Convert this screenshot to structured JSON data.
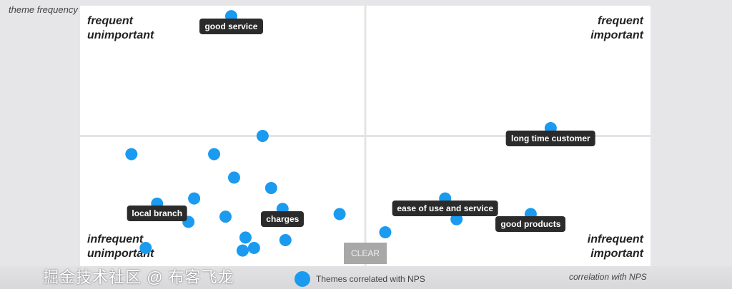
{
  "chart_data": {
    "type": "scatter",
    "ylabel": "theme frequency",
    "xlabel": "correlation with NPS",
    "xlim": [
      -1,
      1
    ],
    "ylim": [
      0,
      1
    ],
    "quadrants": {
      "top_left": [
        "frequent",
        "unimportant"
      ],
      "top_right": [
        "frequent",
        "important"
      ],
      "bottom_left": [
        "infrequent",
        "unimportant"
      ],
      "bottom_right": [
        "infrequent",
        "important"
      ]
    },
    "legend": "Themes correlated with NPS",
    "color": "#1a9bf0",
    "points": [
      {
        "x": -0.47,
        "y": 0.96,
        "label": "good service"
      },
      {
        "x": -0.36,
        "y": 0.5
      },
      {
        "x": 0.65,
        "y": 0.53,
        "label": "long time customer"
      },
      {
        "x": -0.82,
        "y": 0.43
      },
      {
        "x": -0.53,
        "y": 0.43
      },
      {
        "x": -0.46,
        "y": 0.34
      },
      {
        "x": -0.33,
        "y": 0.3
      },
      {
        "x": -0.6,
        "y": 0.26
      },
      {
        "x": -0.73,
        "y": 0.24,
        "label": "local branch"
      },
      {
        "x": -0.29,
        "y": 0.22,
        "label": "charges"
      },
      {
        "x": -0.49,
        "y": 0.19
      },
      {
        "x": -0.62,
        "y": 0.17
      },
      {
        "x": -0.09,
        "y": 0.2
      },
      {
        "x": -0.42,
        "y": 0.11
      },
      {
        "x": -0.28,
        "y": 0.1
      },
      {
        "x": -0.43,
        "y": 0.06
      },
      {
        "x": -0.39,
        "y": 0.07
      },
      {
        "x": -0.77,
        "y": 0.07
      },
      {
        "x": 0.07,
        "y": 0.13
      },
      {
        "x": 0.28,
        "y": 0.26,
        "label": "ease of use and service"
      },
      {
        "x": 0.32,
        "y": 0.18
      },
      {
        "x": 0.58,
        "y": 0.2,
        "label": "good products"
      }
    ]
  },
  "clear_label": "CLEAR",
  "watermark": "掘金技术社区 @ 布客飞龙"
}
